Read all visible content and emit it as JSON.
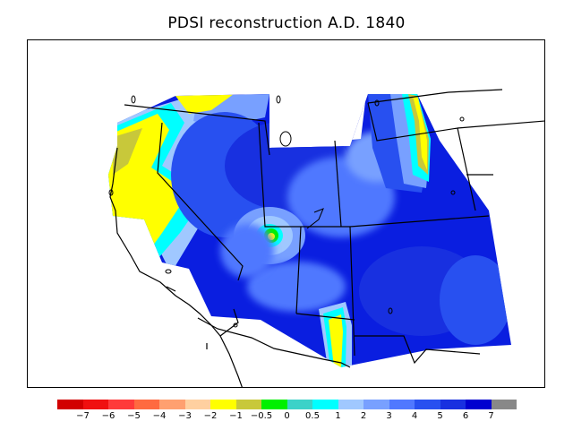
{
  "title": "PDSI reconstruction A.D. 1840",
  "legend": {
    "colors": [
      "#d20000",
      "#f01010",
      "#ff3a3a",
      "#ff6a40",
      "#ffa070",
      "#ffd0a0",
      "#ffff00",
      "#c8c83a",
      "#00f000",
      "#3cd2c8",
      "#00ffff",
      "#a0c8ff",
      "#78a0ff",
      "#5078ff",
      "#2850f0",
      "#1830e0",
      "#0000d0",
      "#888888"
    ],
    "labels": [
      "−7",
      "−6",
      "−5",
      "−4",
      "−3",
      "−2",
      "−1",
      "−0.5",
      "0",
      "0.5",
      "1",
      "2",
      "3",
      "4",
      "5",
      "6",
      "7"
    ]
  }
}
